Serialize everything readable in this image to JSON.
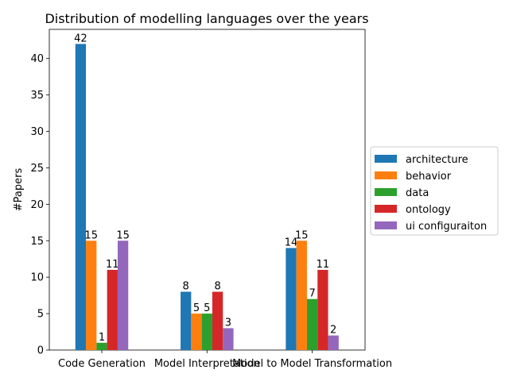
{
  "chart_data": {
    "type": "bar",
    "title": "Distribution of modelling languages over the years",
    "xlabel": "",
    "ylabel": "#Papers",
    "ylim": [
      0,
      44
    ],
    "yticks": [
      0,
      5,
      10,
      15,
      20,
      25,
      30,
      35,
      40
    ],
    "grid": false,
    "legend_position": "right",
    "categories": [
      "Code Generation",
      "Model Interpretation",
      "Model to Model Transformation"
    ],
    "series": [
      {
        "name": "architecture",
        "color": "#1f77b4",
        "values": [
          42,
          8,
          14
        ]
      },
      {
        "name": "behavior",
        "color": "#ff7f0e",
        "values": [
          15,
          5,
          15
        ]
      },
      {
        "name": "data",
        "color": "#2ca02c",
        "values": [
          1,
          5,
          7
        ]
      },
      {
        "name": "ontology",
        "color": "#d62728",
        "values": [
          11,
          8,
          11
        ]
      },
      {
        "name": "ui configuraiton",
        "color": "#9467bd",
        "values": [
          15,
          3,
          2
        ]
      }
    ]
  }
}
